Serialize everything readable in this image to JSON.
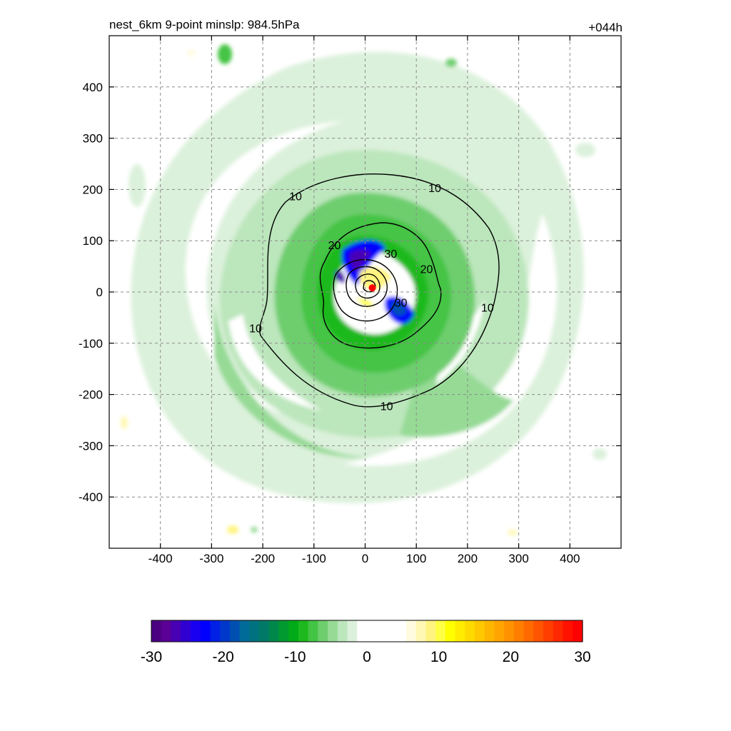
{
  "chart_data": {
    "type": "contour",
    "title_left": "nest_6km  9-point minslp: 984.5hPa",
    "title_right": "+044h",
    "x_ticks": [
      -400,
      -300,
      -200,
      -100,
      0,
      100,
      200,
      300,
      400
    ],
    "y_ticks": [
      400,
      300,
      200,
      100,
      0,
      -100,
      -200,
      -300,
      -400
    ],
    "xlim": [
      -500,
      500
    ],
    "ylim": [
      -500,
      500
    ],
    "grid": true,
    "colorbar": {
      "range": [
        -30,
        30
      ],
      "ticks": [
        -30,
        -20,
        -10,
        0,
        10,
        20,
        30
      ],
      "orientation": "horizontal",
      "colors": [
        "#4b0082",
        "#5a0096",
        "#4800b4",
        "#3000d2",
        "#1a00f0",
        "#0000ff",
        "#0020e6",
        "#0038cc",
        "#0050b2",
        "#006a99",
        "#00727f",
        "#007a66",
        "#00884c",
        "#009a30",
        "#00aa18",
        "#1eb91e",
        "#44c444",
        "#6ece6e",
        "#96da96",
        "#bce6bc",
        "#dcf1dc",
        "#ffffff",
        "#ffffff",
        "#ffffff",
        "#ffffff",
        "#ffffff",
        "#fffbe0",
        "#fff8b4",
        "#fff480",
        "#ffff44",
        "#ffff00",
        "#ffec00",
        "#ffda00",
        "#ffc800",
        "#ffb600",
        "#ffa400",
        "#ff9200",
        "#ff7e00",
        "#ff6a00",
        "#ff5400",
        "#ff3e00",
        "#ff2800",
        "#ff1200",
        "#ff0000"
      ]
    },
    "contour_labels": [
      {
        "text": "10",
        "x": -136,
        "y": 187
      },
      {
        "text": "10",
        "x": 136,
        "y": 203
      },
      {
        "text": "10",
        "x": 239,
        "y": -30
      },
      {
        "text": "10",
        "x": -214,
        "y": -70
      },
      {
        "text": "10",
        "x": 42,
        "y": -222
      },
      {
        "text": "20",
        "x": -60,
        "y": 92
      },
      {
        "text": "30",
        "x": 50,
        "y": 75
      },
      {
        "text": "20",
        "x": 120,
        "y": 45
      },
      {
        "text": "30",
        "x": 70,
        "y": -20
      }
    ],
    "center_marker": {
      "x": 14,
      "y": 8,
      "color": "#ff0000"
    }
  }
}
